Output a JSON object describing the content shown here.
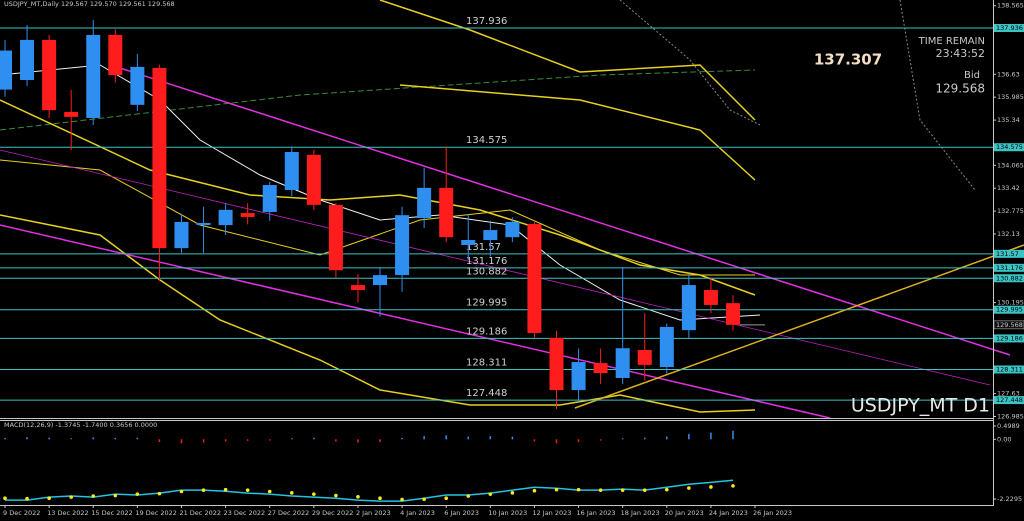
{
  "chart_data": {
    "type": "candlestick",
    "title": "USDJPY_MT,Daily  129.567 129.570 129.561 129.568",
    "categories": [
      "9 Dec 2022",
      null,
      "13 Dec 2022",
      null,
      "15 Dec 2022",
      null,
      "19 Dec 2022",
      null,
      "21 Dec 2022",
      null,
      "23 Dec 2022",
      null,
      "27 Dec 2022",
      null,
      "29 Dec 2022",
      null,
      "2 Jan 2023",
      null,
      "4 Jan 2023",
      null,
      "6 Jan 2023",
      null,
      "10 Jan 2023",
      null,
      "12 Jan 2023",
      null,
      "16 Jan 2023",
      null,
      "18 Jan 2023",
      null,
      "20 Jan 2023",
      null,
      "24 Jan 2023",
      null,
      "26 Jan 2023"
    ],
    "open": [
      136.2,
      136.47,
      137.6,
      135.57,
      135.4,
      137.74,
      135.77,
      136.81,
      131.73,
      132.38,
      132.38,
      132.72,
      132.75,
      133.37,
      134.36,
      132.95,
      130.69,
      130.69,
      130.97,
      132.58,
      133.43,
      131.82,
      131.96,
      132.04,
      132.41,
      129.2,
      127.73,
      128.49,
      128.07,
      128.86,
      128.38,
      129.42,
      130.55,
      130.18,
      null
    ],
    "high": [
      137.6,
      138.02,
      137.74,
      136.19,
      138.16,
      137.9,
      137.2,
      136.9,
      132.7,
      132.9,
      133.0,
      133.0,
      133.6,
      134.6,
      134.5,
      133.0,
      131.0,
      131.2,
      132.9,
      134.0,
      134.6,
      132.7,
      132.5,
      132.6,
      132.5,
      129.4,
      128.9,
      128.9,
      131.2,
      129.9,
      129.6,
      131.0,
      130.9,
      130.4,
      null
    ],
    "low": [
      136.0,
      136.3,
      135.4,
      134.5,
      135.2,
      136.4,
      135.6,
      130.8,
      131.6,
      131.6,
      132.1,
      132.4,
      132.5,
      133.2,
      132.8,
      130.9,
      130.2,
      129.8,
      130.5,
      132.3,
      131.9,
      131.4,
      131.5,
      131.9,
      129.2,
      127.2,
      127.4,
      127.9,
      127.9,
      128.0,
      128.2,
      129.2,
      129.9,
      129.4,
      null
    ],
    "close": [
      137.3,
      137.6,
      135.62,
      135.43,
      137.74,
      136.61,
      136.84,
      131.73,
      132.47,
      132.44,
      132.81,
      132.61,
      133.51,
      134.44,
      132.95,
      131.11,
      130.55,
      130.97,
      132.66,
      133.43,
      132.04,
      131.96,
      132.24,
      132.47,
      129.34,
      127.73,
      128.52,
      128.21,
      128.91,
      128.44,
      129.51,
      130.69,
      130.13,
      129.57,
      null
    ],
    "ylim": [
      126.943,
      138.725
    ],
    "yticks": [
      138.565,
      136.63,
      135.985,
      135.34,
      134.065,
      133.42,
      132.775,
      132.13,
      130.195,
      127.63,
      126.985
    ],
    "levels": [
      137.936,
      134.575,
      131.57,
      131.176,
      130.882,
      129.995,
      129.186,
      128.311,
      127.448
    ],
    "bid": 129.568,
    "colors": {
      "up": "#2f8ff0",
      "down": "#ff1c1c",
      "level": "#3cc4c4"
    },
    "watermark": "USDJPY_MT D1",
    "info": {
      "price": 137.307,
      "time_label": "TIME REMAIN",
      "time": "23:43:52",
      "bid_label": "Bid",
      "bid": 129.568
    },
    "macd": {
      "title": "MACD(12,26,9) -1.3745 -1.7400 0.3656 0.0000",
      "ylim": [
        -2.454,
        0.683
      ],
      "yticks": [
        0.4989,
        {
          "value": 0,
          "label": "0.00"
        },
        -2.2295
      ],
      "histogram": [
        0.05,
        0.08,
        0.06,
        0.04,
        0.07,
        0.05,
        0.06,
        -0.1,
        -0.15,
        -0.12,
        -0.08,
        -0.06,
        -0.05,
        0.04,
        0.06,
        -0.08,
        -0.12,
        -0.1,
        0.05,
        0.12,
        0.15,
        0.1,
        0.12,
        0.1,
        -0.08,
        -0.15,
        -0.1,
        -0.05,
        0.04,
        0.06,
        0.1,
        0.2,
        0.25,
        0.32,
        null
      ],
      "line": [
        -2.27,
        -2.27,
        -2.16,
        -2.12,
        -2.16,
        -2.05,
        -2.08,
        -2.01,
        -1.9,
        -1.9,
        -1.94,
        -2.01,
        -2.05,
        -2.12,
        -2.16,
        -2.2,
        -2.27,
        -2.31,
        -2.31,
        -2.2,
        -2.08,
        -2.08,
        -2.01,
        -1.9,
        -1.79,
        -1.83,
        -1.9,
        -1.9,
        -1.86,
        -1.9,
        -1.79,
        -1.68,
        -1.61,
        -1.53,
        null
      ],
      "signal": [
        -2.2,
        -2.22,
        -2.2,
        -2.16,
        -2.12,
        -2.1,
        -2.05,
        -2.03,
        -1.95,
        -1.9,
        -1.88,
        -1.9,
        -1.95,
        -2.0,
        -2.05,
        -2.1,
        -2.15,
        -2.2,
        -2.25,
        -2.24,
        -2.2,
        -2.12,
        -2.05,
        -2.0,
        -1.92,
        -1.88,
        -1.88,
        -1.9,
        -1.9,
        -1.9,
        -1.88,
        -1.82,
        -1.78,
        -1.74,
        null
      ],
      "colors": {
        "line": "#22c4e0",
        "signal": "#ffe81a",
        "up": "#2f8ff0",
        "down": "#ff1c1c"
      }
    }
  }
}
